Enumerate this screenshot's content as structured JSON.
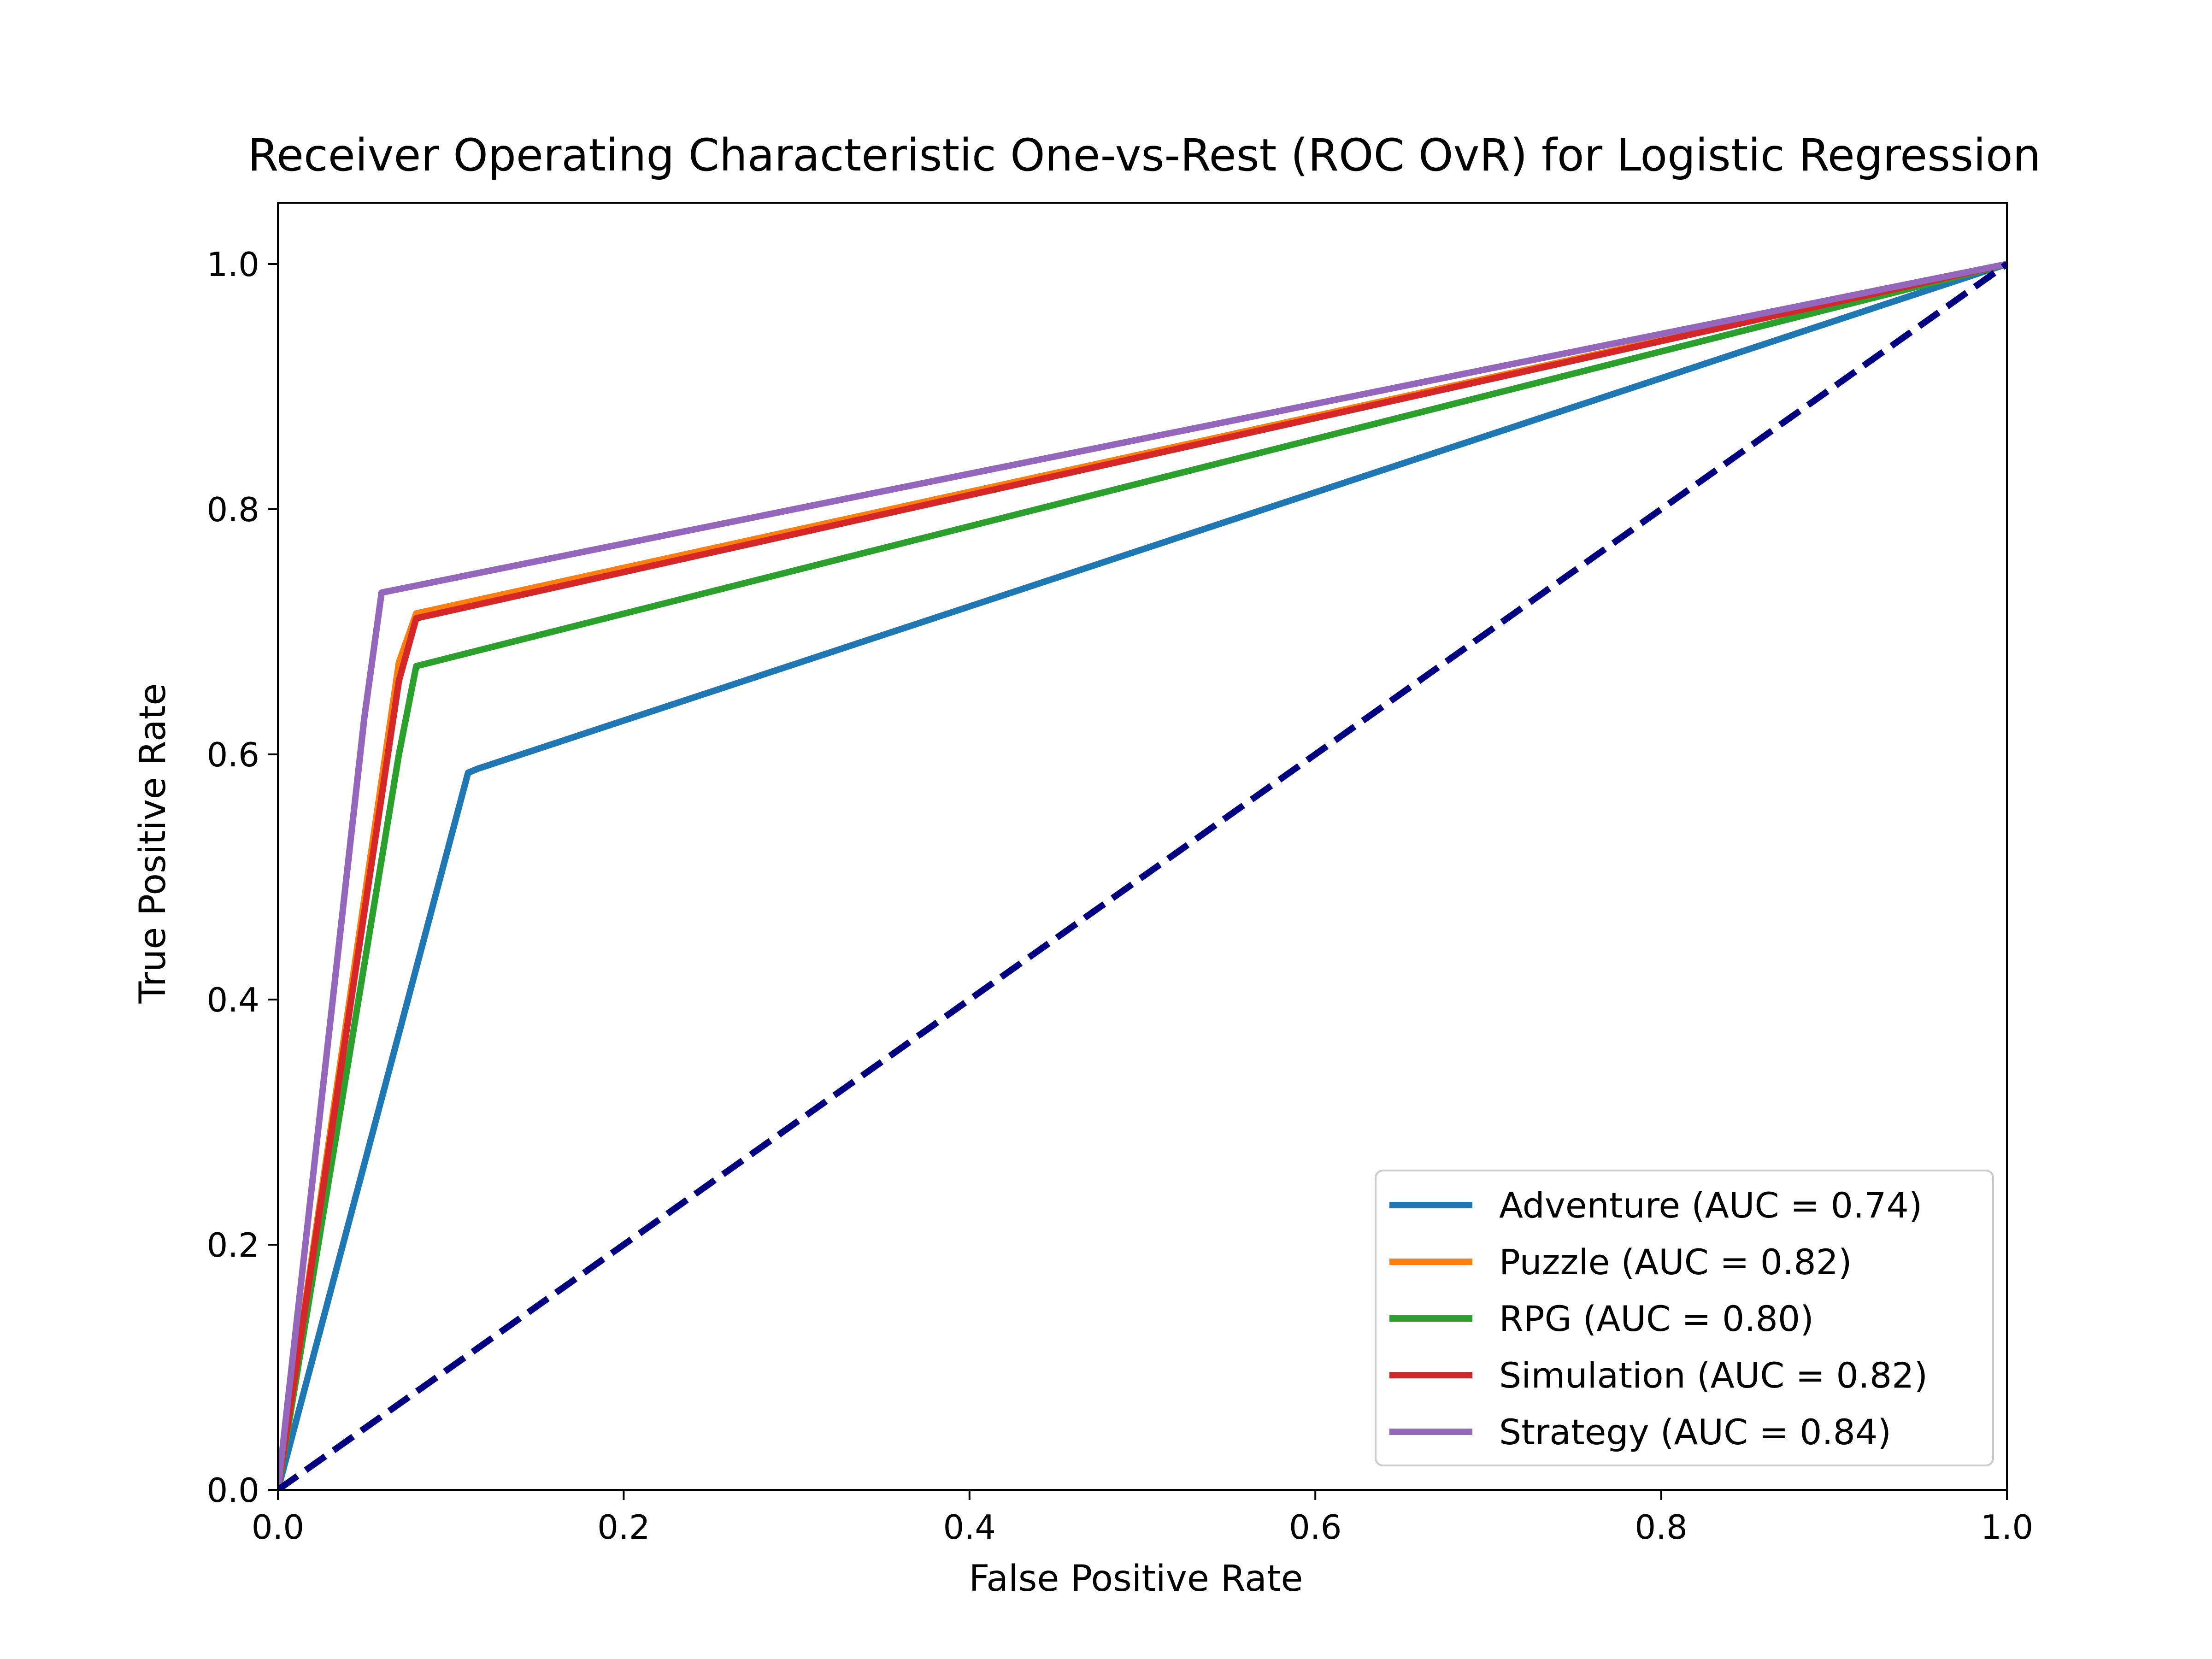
{
  "chart_data": {
    "type": "line",
    "title": "Receiver Operating Characteristic One-vs-Rest (ROC OvR) for Logistic Regression",
    "xlabel": "False Positive Rate",
    "ylabel": "True Positive Rate",
    "xlim": [
      0.0,
      1.0
    ],
    "ylim": [
      0.0,
      1.05
    ],
    "xticks": [
      0.0,
      0.2,
      0.4,
      0.6,
      0.8,
      1.0
    ],
    "yticks": [
      0.0,
      0.2,
      0.4,
      0.6,
      0.8,
      1.0
    ],
    "xtick_labels": [
      "0.0",
      "0.2",
      "0.4",
      "0.6",
      "0.8",
      "1.0"
    ],
    "ytick_labels": [
      "0.0",
      "0.2",
      "0.4",
      "0.6",
      "0.8",
      "1.0"
    ],
    "grid": false,
    "legend_position": "lower-right",
    "series": [
      {
        "name": "Adventure (AUC = 0.74)",
        "color": "#1f77b4",
        "x": [
          0.0,
          0.11,
          0.115,
          1.0
        ],
        "y": [
          0.0,
          0.585,
          0.588,
          1.0
        ]
      },
      {
        "name": "Puzzle (AUC = 0.82)",
        "color": "#ff7f0e",
        "x": [
          0.0,
          0.07,
          0.08,
          1.0
        ],
        "y": [
          0.0,
          0.675,
          0.715,
          1.0
        ]
      },
      {
        "name": "RPG (AUC = 0.80)",
        "color": "#2ca02c",
        "x": [
          0.0,
          0.07,
          0.08,
          1.0
        ],
        "y": [
          0.0,
          0.6,
          0.672,
          1.0
        ]
      },
      {
        "name": "Simulation (AUC = 0.82)",
        "color": "#d62728",
        "x": [
          0.0,
          0.07,
          0.08,
          1.0
        ],
        "y": [
          0.0,
          0.66,
          0.711,
          1.0
        ]
      },
      {
        "name": "Strategy (AUC = 0.84)",
        "color": "#9467bd",
        "x": [
          0.0,
          0.05,
          0.06,
          1.0
        ],
        "y": [
          0.0,
          0.63,
          0.732,
          1.0
        ]
      }
    ],
    "reference_line": {
      "style": "dashed",
      "color": "#000080",
      "x": [
        0.0,
        1.0
      ],
      "y": [
        0.0,
        1.0
      ]
    }
  }
}
